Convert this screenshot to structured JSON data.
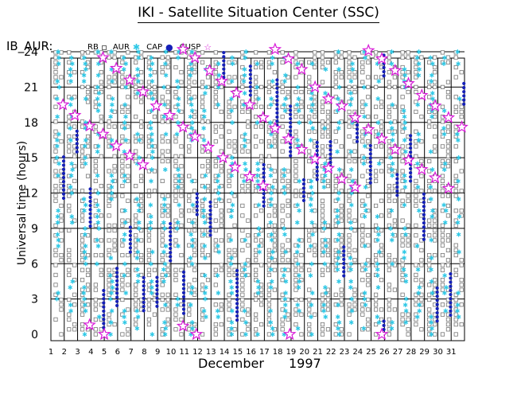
{
  "page_title": "IKI - Satellite Situation Center (SSC)",
  "plot_label": "IB_AUR:",
  "legend": [
    {
      "name": "RB",
      "symbol": "open-square",
      "color": "#777777"
    },
    {
      "name": "AUR",
      "symbol": "star",
      "color": "#2ec8e6"
    },
    {
      "name": "CAP",
      "symbol": "dot",
      "color": "#1520b8"
    },
    {
      "name": "CUSP",
      "symbol": "open-star",
      "color": "#d818d8"
    }
  ],
  "chart_data": {
    "type": "scatter",
    "title": "IKI - Satellite Situation Center (SSC)",
    "ylabel": "Universal time (hours)",
    "xlabel_month": "December",
    "xlabel_year": "1997",
    "x_ticks": [
      "1",
      "2",
      "3",
      "4",
      "5",
      "6",
      "7",
      "8",
      "9",
      "10",
      "11",
      "12",
      "13",
      "14",
      "15",
      "16",
      "17",
      "18",
      "19",
      "20",
      "21",
      "22",
      "23",
      "24",
      "25",
      "26",
      "27",
      "28",
      "29",
      "30",
      "31"
    ],
    "y_ticks": [
      "0",
      "3",
      "6",
      "9",
      "12",
      "15",
      "18",
      "21",
      "24"
    ],
    "xlim": [
      1,
      32
    ],
    "ylim": [
      0,
      24
    ],
    "grid": true,
    "series_names": [
      "RB",
      "AUR",
      "CAP",
      "CUSP"
    ],
    "cusp_points": [
      {
        "day": 1.9,
        "ut": 19.5
      },
      {
        "day": 2.8,
        "ut": 18.6
      },
      {
        "day": 3.9,
        "ut": 17.7
      },
      {
        "day": 3.9,
        "ut": 0.8
      },
      {
        "day": 4.9,
        "ut": 17.0
      },
      {
        "day": 4.9,
        "ut": 23.5
      },
      {
        "day": 5.0,
        "ut": 0.0
      },
      {
        "day": 5.9,
        "ut": 16.0
      },
      {
        "day": 5.9,
        "ut": 22.6
      },
      {
        "day": 6.9,
        "ut": 15.2
      },
      {
        "day": 6.9,
        "ut": 21.6
      },
      {
        "day": 7.9,
        "ut": 14.4
      },
      {
        "day": 7.9,
        "ut": 20.6
      },
      {
        "day": 8.9,
        "ut": 19.4
      },
      {
        "day": 9.9,
        "ut": 18.6
      },
      {
        "day": 10.9,
        "ut": 17.6
      },
      {
        "day": 10.9,
        "ut": 24.2
      },
      {
        "day": 10.9,
        "ut": 0.7
      },
      {
        "day": 11.8,
        "ut": 16.8
      },
      {
        "day": 11.8,
        "ut": 23.5
      },
      {
        "day": 11.9,
        "ut": 0.0
      },
      {
        "day": 12.8,
        "ut": 15.9
      },
      {
        "day": 12.9,
        "ut": 22.4
      },
      {
        "day": 13.8,
        "ut": 21.5
      },
      {
        "day": 13.9,
        "ut": 15.0
      },
      {
        "day": 14.8,
        "ut": 14.2
      },
      {
        "day": 14.9,
        "ut": 20.5
      },
      {
        "day": 15.9,
        "ut": 19.5
      },
      {
        "day": 15.9,
        "ut": 13.4
      },
      {
        "day": 16.9,
        "ut": 18.4
      },
      {
        "day": 16.9,
        "ut": 12.6
      },
      {
        "day": 17.8,
        "ut": 17.5
      },
      {
        "day": 17.8,
        "ut": 24.2
      },
      {
        "day": 18.8,
        "ut": 16.6
      },
      {
        "day": 18.8,
        "ut": 23.4
      },
      {
        "day": 18.9,
        "ut": 0.0
      },
      {
        "day": 19.8,
        "ut": 22.5
      },
      {
        "day": 19.8,
        "ut": 15.7
      },
      {
        "day": 20.8,
        "ut": 21.0
      },
      {
        "day": 20.8,
        "ut": 14.9
      },
      {
        "day": 21.8,
        "ut": 20.0
      },
      {
        "day": 21.8,
        "ut": 14.1
      },
      {
        "day": 22.8,
        "ut": 19.4
      },
      {
        "day": 22.8,
        "ut": 13.2
      },
      {
        "day": 23.8,
        "ut": 18.4
      },
      {
        "day": 23.8,
        "ut": 12.5
      },
      {
        "day": 24.8,
        "ut": 17.4
      },
      {
        "day": 24.8,
        "ut": 24.1
      },
      {
        "day": 25.8,
        "ut": 16.6
      },
      {
        "day": 25.8,
        "ut": 23.4
      },
      {
        "day": 25.8,
        "ut": 0.0
      },
      {
        "day": 26.8,
        "ut": 22.4
      },
      {
        "day": 26.8,
        "ut": 15.7
      },
      {
        "day": 27.8,
        "ut": 21.3
      },
      {
        "day": 27.8,
        "ut": 14.8
      },
      {
        "day": 28.8,
        "ut": 20.3
      },
      {
        "day": 28.8,
        "ut": 14.0
      },
      {
        "day": 29.8,
        "ut": 19.4
      },
      {
        "day": 29.8,
        "ut": 13.3
      },
      {
        "day": 30.8,
        "ut": 18.4
      },
      {
        "day": 30.8,
        "ut": 12.4
      },
      {
        "day": 31.8,
        "ut": 17.6
      }
    ]
  }
}
